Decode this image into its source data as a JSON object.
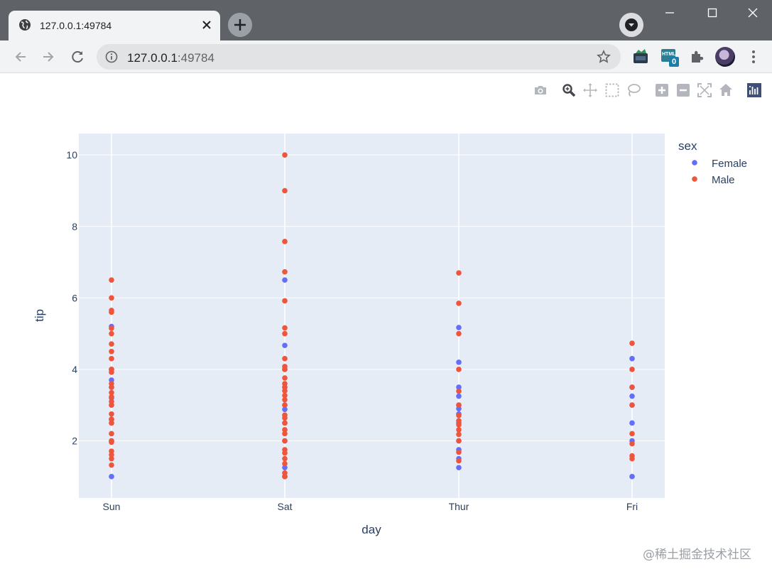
{
  "browser": {
    "tab_title": "127.0.0.1:49784",
    "url_host": "127.0.0.1",
    "url_port": ":49784",
    "extension_badge": "0",
    "extension_label": "HTML"
  },
  "modebar": {
    "buttons": [
      "camera-icon",
      "zoom-icon",
      "pan-icon",
      "box-select-icon",
      "lasso-select-icon",
      "zoom-in-icon",
      "zoom-out-icon",
      "autoscale-icon",
      "reset-axes-icon",
      "plotly-logo-icon"
    ]
  },
  "colors": {
    "female": "#636efa",
    "male": "#ef553b",
    "plot_bg": "#e5ecf6",
    "grid": "#ffffff",
    "axis_text": "#2a3f5f"
  },
  "chart_data": {
    "type": "scatter",
    "title": "",
    "xlabel": "day",
    "ylabel": "tip",
    "categories": [
      "Sun",
      "Sat",
      "Thur",
      "Fri"
    ],
    "ylim": [
      0.4,
      10.6
    ],
    "yticks": [
      2,
      4,
      6,
      8,
      10
    ],
    "grid": true,
    "legend": {
      "title": "sex",
      "placement": "top-right"
    },
    "series": [
      {
        "name": "Female",
        "color": "#636efa",
        "points": [
          [
            "Sun",
            1.0
          ],
          [
            "Sun",
            2.5
          ],
          [
            "Sun",
            3.0
          ],
          [
            "Sun",
            3.5
          ],
          [
            "Sun",
            3.2
          ],
          [
            "Sun",
            4.0
          ],
          [
            "Sun",
            5.2
          ],
          [
            "Sun",
            2.0
          ],
          [
            "Sun",
            3.7
          ],
          [
            "Sun",
            2.6
          ],
          [
            "Sat",
            1.0
          ],
          [
            "Sat",
            1.25
          ],
          [
            "Sat",
            2.0
          ],
          [
            "Sat",
            2.5
          ],
          [
            "Sat",
            2.88
          ],
          [
            "Sat",
            3.0
          ],
          [
            "Sat",
            3.5
          ],
          [
            "Sat",
            4.0
          ],
          [
            "Sat",
            4.67
          ],
          [
            "Sat",
            6.5
          ],
          [
            "Thur",
            1.25
          ],
          [
            "Thur",
            1.5
          ],
          [
            "Thur",
            1.75
          ],
          [
            "Thur",
            2.0
          ],
          [
            "Thur",
            2.5
          ],
          [
            "Thur",
            2.75
          ],
          [
            "Thur",
            3.0
          ],
          [
            "Thur",
            3.25
          ],
          [
            "Thur",
            3.5
          ],
          [
            "Thur",
            4.2
          ],
          [
            "Thur",
            5.17
          ],
          [
            "Thur",
            2.9
          ],
          [
            "Fri",
            1.0
          ],
          [
            "Fri",
            2.0
          ],
          [
            "Fri",
            2.5
          ],
          [
            "Fri",
            3.0
          ],
          [
            "Fri",
            3.25
          ],
          [
            "Fri",
            4.3
          ],
          [
            "Fri",
            3.5
          ]
        ]
      },
      {
        "name": "Male",
        "color": "#ef553b",
        "points": [
          [
            "Sun",
            1.32
          ],
          [
            "Sun",
            1.5
          ],
          [
            "Sun",
            1.61
          ],
          [
            "Sun",
            1.71
          ],
          [
            "Sun",
            1.96
          ],
          [
            "Sun",
            2.0
          ],
          [
            "Sun",
            2.2
          ],
          [
            "Sun",
            2.5
          ],
          [
            "Sun",
            2.6
          ],
          [
            "Sun",
            2.75
          ],
          [
            "Sun",
            3.0
          ],
          [
            "Sun",
            3.1
          ],
          [
            "Sun",
            3.23
          ],
          [
            "Sun",
            3.35
          ],
          [
            "Sun",
            3.5
          ],
          [
            "Sun",
            3.6
          ],
          [
            "Sun",
            3.92
          ],
          [
            "Sun",
            4.0
          ],
          [
            "Sun",
            4.3
          ],
          [
            "Sun",
            4.5
          ],
          [
            "Sun",
            4.71
          ],
          [
            "Sun",
            5.0
          ],
          [
            "Sun",
            5.15
          ],
          [
            "Sun",
            5.6
          ],
          [
            "Sun",
            5.65
          ],
          [
            "Sun",
            6.0
          ],
          [
            "Sun",
            6.5
          ],
          [
            "Sat",
            1.0
          ],
          [
            "Sat",
            1.1
          ],
          [
            "Sat",
            1.36
          ],
          [
            "Sat",
            1.5
          ],
          [
            "Sat",
            1.66
          ],
          [
            "Sat",
            1.75
          ],
          [
            "Sat",
            2.0
          ],
          [
            "Sat",
            2.2
          ],
          [
            "Sat",
            2.31
          ],
          [
            "Sat",
            2.5
          ],
          [
            "Sat",
            2.64
          ],
          [
            "Sat",
            2.72
          ],
          [
            "Sat",
            3.0
          ],
          [
            "Sat",
            3.15
          ],
          [
            "Sat",
            3.27
          ],
          [
            "Sat",
            3.4
          ],
          [
            "Sat",
            3.5
          ],
          [
            "Sat",
            3.6
          ],
          [
            "Sat",
            3.76
          ],
          [
            "Sat",
            4.0
          ],
          [
            "Sat",
            4.08
          ],
          [
            "Sat",
            4.3
          ],
          [
            "Sat",
            5.0
          ],
          [
            "Sat",
            5.16
          ],
          [
            "Sat",
            5.92
          ],
          [
            "Sat",
            6.73
          ],
          [
            "Sat",
            7.58
          ],
          [
            "Sat",
            9.0
          ],
          [
            "Sat",
            10.0
          ],
          [
            "Thur",
            1.44
          ],
          [
            "Thur",
            1.68
          ],
          [
            "Thur",
            2.0
          ],
          [
            "Thur",
            2.18
          ],
          [
            "Thur",
            2.31
          ],
          [
            "Thur",
            2.45
          ],
          [
            "Thur",
            2.56
          ],
          [
            "Thur",
            2.71
          ],
          [
            "Thur",
            3.0
          ],
          [
            "Thur",
            3.39
          ],
          [
            "Thur",
            4.0
          ],
          [
            "Thur",
            5.0
          ],
          [
            "Thur",
            5.85
          ],
          [
            "Thur",
            6.7
          ],
          [
            "Fri",
            1.5
          ],
          [
            "Fri",
            1.58
          ],
          [
            "Fri",
            1.92
          ],
          [
            "Fri",
            2.2
          ],
          [
            "Fri",
            3.0
          ],
          [
            "Fri",
            3.5
          ],
          [
            "Fri",
            4.0
          ],
          [
            "Fri",
            4.73
          ]
        ]
      }
    ]
  },
  "watermark": "@稀土掘金技术社区"
}
